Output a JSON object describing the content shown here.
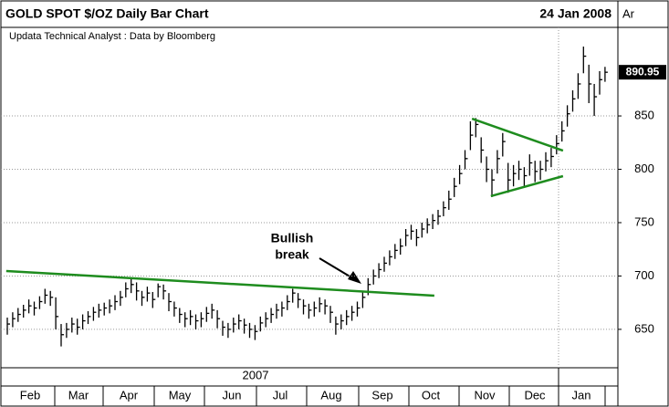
{
  "chart_data": {
    "type": "ohlc",
    "title": "GOLD SPOT $/OZ Daily Bar Chart",
    "date": "24 Jan 2008",
    "corner_label": "Ar",
    "subtitle": "Updata Technical Analyst : Data by Bloomberg",
    "last_label": "890.95",
    "year_label": "2007",
    "months": [
      "Feb",
      "Mar",
      "Apr",
      "May",
      "Jun",
      "Jul",
      "Aug",
      "Sep",
      "Oct",
      "Nov",
      "Dec",
      "Jan"
    ],
    "annotation": "Bullish\nbreak",
    "color": "#000000",
    "trend_color": "#1e8c1e",
    "grid": true,
    "ylim": [
      614,
      933
    ],
    "yticks": [
      650,
      700,
      750,
      800,
      850
    ],
    "high": [
      661,
      666,
      670,
      673,
      678,
      676,
      681,
      688,
      686,
      680,
      655,
      656,
      661,
      660,
      664,
      667,
      671,
      674,
      675,
      678,
      682,
      686,
      694,
      697,
      694,
      686,
      690,
      685,
      693,
      692,
      684,
      676,
      670,
      666,
      668,
      664,
      666,
      671,
      674,
      668,
      658,
      656,
      661,
      664,
      660,
      656,
      654,
      662,
      666,
      670,
      674,
      676,
      682,
      688,
      684,
      678,
      674,
      676,
      680,
      678,
      672,
      662,
      664,
      668,
      672,
      676,
      686,
      698,
      706,
      712,
      718,
      724,
      730,
      735,
      744,
      748,
      744,
      750,
      754,
      758,
      762,
      770,
      780,
      792,
      804,
      818,
      845,
      848,
      830,
      812,
      800,
      818,
      834,
      806,
      804,
      808,
      802,
      814,
      808,
      808,
      816,
      820,
      832,
      845,
      860,
      874,
      890,
      915,
      898,
      880,
      892,
      896
    ],
    "low": [
      645,
      652,
      657,
      661,
      665,
      663,
      669,
      674,
      672,
      650,
      634,
      642,
      647,
      645,
      650,
      655,
      658,
      661,
      663,
      665,
      668,
      672,
      680,
      684,
      677,
      672,
      676,
      670,
      680,
      678,
      667,
      662,
      656,
      652,
      654,
      650,
      652,
      657,
      660,
      651,
      644,
      642,
      647,
      650,
      646,
      642,
      640,
      648,
      652,
      656,
      660,
      662,
      668,
      675,
      670,
      664,
      660,
      662,
      666,
      664,
      656,
      645,
      650,
      654,
      658,
      662,
      670,
      682,
      692,
      698,
      704,
      710,
      716,
      720,
      728,
      734,
      728,
      736,
      740,
      744,
      748,
      756,
      762,
      774,
      786,
      800,
      818,
      830,
      806,
      788,
      774,
      796,
      812,
      778,
      784,
      790,
      784,
      794,
      788,
      790,
      798,
      802,
      814,
      826,
      840,
      854,
      866,
      890,
      862,
      850,
      870,
      882
    ],
    "close": [
      655,
      660,
      664,
      668,
      672,
      670,
      676,
      682,
      680,
      662,
      645,
      650,
      655,
      652,
      658,
      662,
      666,
      668,
      670,
      672,
      676,
      680,
      688,
      692,
      686,
      680,
      684,
      678,
      690,
      686,
      676,
      670,
      664,
      660,
      662,
      658,
      660,
      665,
      668,
      660,
      652,
      650,
      655,
      658,
      654,
      650,
      648,
      656,
      660,
      664,
      668,
      670,
      676,
      684,
      678,
      672,
      668,
      670,
      674,
      672,
      666,
      655,
      658,
      662,
      666,
      670,
      680,
      692,
      700,
      706,
      712,
      718,
      724,
      728,
      738,
      742,
      736,
      744,
      748,
      752,
      756,
      764,
      772,
      784,
      796,
      810,
      832,
      842,
      818,
      800,
      790,
      810,
      826,
      790,
      796,
      800,
      794,
      806,
      798,
      800,
      808,
      812,
      824,
      836,
      852,
      866,
      880,
      906,
      880,
      868,
      884,
      890.95
    ],
    "trendlines": [
      {
        "x": [
          -0.2,
          79.3
        ],
        "y": [
          704.7,
          681.6
        ]
      },
      {
        "x": [
          86.3,
          103.2
        ],
        "y": [
          847.4,
          817.5
        ]
      },
      {
        "x": [
          89.8,
          103.2
        ],
        "y": [
          774.8,
          793.6
        ]
      }
    ]
  }
}
